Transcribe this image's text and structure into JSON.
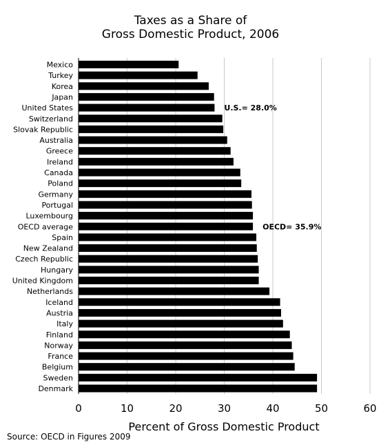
{
  "chart_data": {
    "type": "bar",
    "orientation": "horizontal",
    "title_lines": [
      "Taxes as a Share of",
      "Gross Domestic Product, 2006"
    ],
    "xlabel": "Percent of Gross Domestic Product",
    "xlim": [
      0,
      60
    ],
    "xticks": [
      0,
      10,
      20,
      30,
      40,
      50,
      60
    ],
    "grid": "vertical",
    "bar_color": "#000000",
    "categories": [
      "Mexico",
      "Turkey",
      "Korea",
      "Japan",
      "United States",
      "Switzerland",
      "Slovak Republic",
      "Australia",
      "Greece",
      "Ireland",
      "Canada",
      "Poland",
      "Germany",
      "Portugal",
      "Luxembourg",
      "OECD average",
      "Spain",
      "New Zealand",
      "Czech Republic",
      "Hungary",
      "United Kingdom",
      "Netherlands",
      "Iceland",
      "Austria",
      "Italy",
      "Finland",
      "Norway",
      "France",
      "Belgium",
      "Sweden",
      "Denmark"
    ],
    "values": [
      20.6,
      24.5,
      26.8,
      27.9,
      28.0,
      29.6,
      29.8,
      30.6,
      31.3,
      31.9,
      33.3,
      33.5,
      35.6,
      35.7,
      35.9,
      35.9,
      36.6,
      36.7,
      36.9,
      37.1,
      37.1,
      39.3,
      41.5,
      41.7,
      42.1,
      43.5,
      43.9,
      44.2,
      44.5,
      49.1,
      49.1
    ],
    "annotations": [
      {
        "category": "United States",
        "text": "U.S.= 28.0%"
      },
      {
        "category": "OECD average",
        "text": "OECD= 35.9%"
      }
    ]
  },
  "source": "Source: OECD in Figures 2009"
}
